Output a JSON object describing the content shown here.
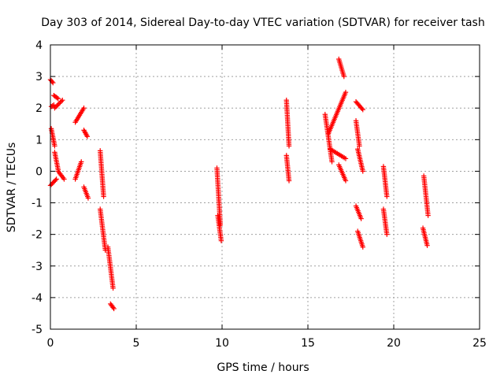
{
  "chart_data": {
    "type": "scatter",
    "title": "Day 303 of 2014, Sidereal Day-to-day VTEC variation (SDTVAR) for receiver tash",
    "xlabel": "GPS time / hours",
    "ylabel": "SDTVAR / TECUs",
    "xlim": [
      0,
      25
    ],
    "ylim": [
      -5,
      4
    ],
    "xticks": [
      0,
      5,
      10,
      15,
      20,
      25
    ],
    "yticks": [
      -5,
      -4,
      -3,
      -2,
      -1,
      0,
      1,
      2,
      3,
      4
    ],
    "grid": true,
    "marker": "+",
    "color": "#ff0000",
    "series": [
      {
        "name": "SDTVAR",
        "segments": [
          {
            "x0": 0.0,
            "x1": 0.15,
            "y0": 2.9,
            "y1": 2.8
          },
          {
            "x0": 0.05,
            "x1": 0.2,
            "y0": 2.05,
            "y1": 2.1
          },
          {
            "x0": 0.2,
            "x1": 0.45,
            "y0": 2.4,
            "y1": 2.3
          },
          {
            "x0": 0.25,
            "x1": 0.7,
            "y0": 2.0,
            "y1": 2.25
          },
          {
            "x0": 0.05,
            "x1": 0.25,
            "y0": 1.35,
            "y1": 0.8
          },
          {
            "x0": 0.25,
            "x1": 0.45,
            "y0": 0.6,
            "y1": 0.05
          },
          {
            "x0": 0.45,
            "x1": 0.8,
            "y0": 0.0,
            "y1": -0.25
          },
          {
            "x0": 0.0,
            "x1": 0.35,
            "y0": -0.45,
            "y1": -0.25
          },
          {
            "x0": 1.45,
            "x1": 1.8,
            "y0": -0.25,
            "y1": 0.3
          },
          {
            "x0": 1.45,
            "x1": 1.95,
            "y0": 1.55,
            "y1": 2.0
          },
          {
            "x0": 1.95,
            "x1": 2.15,
            "y0": 1.3,
            "y1": 1.1
          },
          {
            "x0": 1.95,
            "x1": 2.2,
            "y0": -0.5,
            "y1": -0.85
          },
          {
            "x0": 2.9,
            "x1": 3.1,
            "y0": 0.65,
            "y1": -0.8
          },
          {
            "x0": 2.9,
            "x1": 3.2,
            "y0": -1.2,
            "y1": -2.5
          },
          {
            "x0": 3.35,
            "x1": 3.65,
            "y0": -2.4,
            "y1": -3.7
          },
          {
            "x0": 3.5,
            "x1": 3.7,
            "y0": -4.2,
            "y1": -4.35
          },
          {
            "x0": 9.7,
            "x1": 9.9,
            "y0": 0.1,
            "y1": -1.7
          },
          {
            "x0": 9.75,
            "x1": 9.95,
            "y0": -1.4,
            "y1": -2.2
          },
          {
            "x0": 13.75,
            "x1": 13.9,
            "y0": 2.25,
            "y1": 0.8
          },
          {
            "x0": 13.75,
            "x1": 13.9,
            "y0": 0.5,
            "y1": -0.3
          },
          {
            "x0": 16.0,
            "x1": 16.4,
            "y0": 1.8,
            "y1": 0.3
          },
          {
            "x0": 16.3,
            "x1": 17.2,
            "y0": 0.7,
            "y1": 0.4
          },
          {
            "x0": 16.2,
            "x1": 17.2,
            "y0": 1.2,
            "y1": 2.5
          },
          {
            "x0": 16.8,
            "x1": 17.1,
            "y0": 3.55,
            "y1": 3.0
          },
          {
            "x0": 16.8,
            "x1": 17.2,
            "y0": 0.2,
            "y1": -0.3
          },
          {
            "x0": 17.8,
            "x1": 18.2,
            "y0": 2.2,
            "y1": 1.95
          },
          {
            "x0": 17.8,
            "x1": 18.0,
            "y0": 1.6,
            "y1": 0.8
          },
          {
            "x0": 17.9,
            "x1": 18.2,
            "y0": 0.7,
            "y1": 0.0
          },
          {
            "x0": 17.8,
            "x1": 18.1,
            "y0": -1.1,
            "y1": -1.5
          },
          {
            "x0": 17.9,
            "x1": 18.2,
            "y0": -1.9,
            "y1": -2.4
          },
          {
            "x0": 19.4,
            "x1": 19.6,
            "y0": 0.15,
            "y1": -0.8
          },
          {
            "x0": 19.4,
            "x1": 19.6,
            "y0": -1.2,
            "y1": -2.0
          },
          {
            "x0": 21.75,
            "x1": 22.0,
            "y0": -0.15,
            "y1": -1.4
          },
          {
            "x0": 21.7,
            "x1": 21.95,
            "y0": -1.8,
            "y1": -2.35
          }
        ]
      }
    ]
  }
}
